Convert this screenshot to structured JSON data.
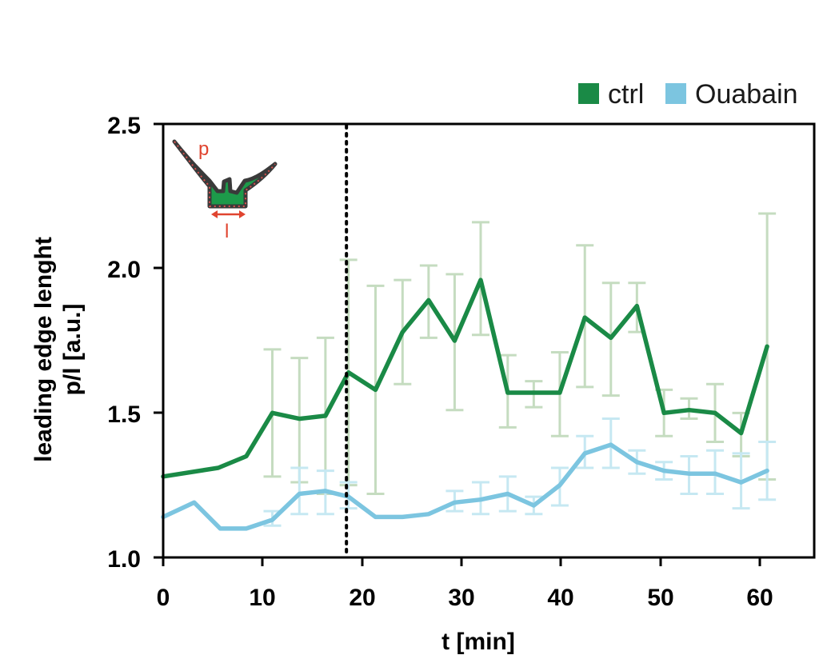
{
  "chart_data": {
    "type": "line",
    "xlabel": "t [min]",
    "ylabel": [
      "leading edge lenght",
      "p/l [a.u.]"
    ],
    "xlim": [
      0,
      65
    ],
    "ylim": [
      1.0,
      2.5
    ],
    "x_ticks": [
      "0",
      "10",
      "20",
      "30",
      "40",
      "50",
      "60"
    ],
    "y_ticks": [
      "1.0",
      "1.5",
      "2.0",
      "2.5"
    ],
    "vline_x": 18.3,
    "vline_style": "dotted",
    "grid": false,
    "legend_position": "top-right",
    "inset_labels": {
      "perimeter": "p",
      "length": "l"
    },
    "series": [
      {
        "name": "ctrl",
        "color": "#1a8a46",
        "error_color": "#c5dcc0",
        "points": [
          {
            "x": 0,
            "y": 1.28
          },
          {
            "x": 5.5,
            "y": 1.31
          },
          {
            "x": 8.3,
            "y": 1.35
          },
          {
            "x": 10.9,
            "y": 1.5,
            "lo": 1.28,
            "hi": 1.72
          },
          {
            "x": 13.6,
            "y": 1.48,
            "lo": 1.26,
            "hi": 1.69
          },
          {
            "x": 16.2,
            "y": 1.49,
            "lo": 1.22,
            "hi": 1.76
          },
          {
            "x": 18.5,
            "y": 1.64,
            "lo": 1.25,
            "hi": 2.03
          },
          {
            "x": 21.2,
            "y": 1.58,
            "lo": 1.22,
            "hi": 1.94
          },
          {
            "x": 23.9,
            "y": 1.78,
            "lo": 1.6,
            "hi": 1.96
          },
          {
            "x": 26.5,
            "y": 1.89,
            "lo": 1.76,
            "hi": 2.01
          },
          {
            "x": 29.1,
            "y": 1.75,
            "lo": 1.51,
            "hi": 1.98
          },
          {
            "x": 31.7,
            "y": 1.96,
            "lo": 1.77,
            "hi": 2.16
          },
          {
            "x": 34.4,
            "y": 1.57,
            "lo": 1.45,
            "hi": 1.7
          },
          {
            "x": 37.0,
            "y": 1.57,
            "lo": 1.52,
            "hi": 1.61
          },
          {
            "x": 39.6,
            "y": 1.57,
            "lo": 1.42,
            "hi": 1.71
          },
          {
            "x": 42.1,
            "y": 1.83,
            "lo": 1.59,
            "hi": 2.08
          },
          {
            "x": 44.7,
            "y": 1.76,
            "lo": 1.56,
            "hi": 1.95
          },
          {
            "x": 47.3,
            "y": 1.87,
            "lo": 1.78,
            "hi": 1.95
          },
          {
            "x": 50.0,
            "y": 1.5,
            "lo": 1.42,
            "hi": 1.58
          },
          {
            "x": 52.5,
            "y": 1.51,
            "lo": 1.48,
            "hi": 1.55
          },
          {
            "x": 55.1,
            "y": 1.5,
            "lo": 1.4,
            "hi": 1.6
          },
          {
            "x": 57.7,
            "y": 1.43,
            "lo": 1.35,
            "hi": 1.5
          },
          {
            "x": 60.3,
            "y": 1.73,
            "lo": 1.27,
            "hi": 2.19
          }
        ]
      },
      {
        "name": "Ouabain",
        "color": "#7cc5e0",
        "error_color": "#c6e8f2",
        "points": [
          {
            "x": 0,
            "y": 1.14
          },
          {
            "x": 3.1,
            "y": 1.19
          },
          {
            "x": 5.7,
            "y": 1.1
          },
          {
            "x": 8.3,
            "y": 1.1
          },
          {
            "x": 10.9,
            "y": 1.13,
            "lo": 1.11,
            "hi": 1.16
          },
          {
            "x": 13.6,
            "y": 1.22,
            "lo": 1.15,
            "hi": 1.31
          },
          {
            "x": 16.2,
            "y": 1.23,
            "lo": 1.15,
            "hi": 1.3
          },
          {
            "x": 18.5,
            "y": 1.21,
            "lo": 1.17,
            "hi": 1.26
          },
          {
            "x": 21.2,
            "y": 1.14
          },
          {
            "x": 23.9,
            "y": 1.14
          },
          {
            "x": 26.5,
            "y": 1.15
          },
          {
            "x": 29.1,
            "y": 1.19,
            "lo": 1.16,
            "hi": 1.23
          },
          {
            "x": 31.7,
            "y": 1.2,
            "lo": 1.15,
            "hi": 1.26
          },
          {
            "x": 34.4,
            "y": 1.22,
            "lo": 1.16,
            "hi": 1.28
          },
          {
            "x": 37.0,
            "y": 1.18,
            "lo": 1.15,
            "hi": 1.21
          },
          {
            "x": 39.6,
            "y": 1.25,
            "lo": 1.18,
            "hi": 1.31
          },
          {
            "x": 42.1,
            "y": 1.36,
            "lo": 1.31,
            "hi": 1.42
          },
          {
            "x": 44.7,
            "y": 1.39,
            "lo": 1.31,
            "hi": 1.48
          },
          {
            "x": 47.3,
            "y": 1.33,
            "lo": 1.29,
            "hi": 1.37
          },
          {
            "x": 50.0,
            "y": 1.3,
            "lo": 1.27,
            "hi": 1.33
          },
          {
            "x": 52.5,
            "y": 1.29,
            "lo": 1.22,
            "hi": 1.35
          },
          {
            "x": 55.1,
            "y": 1.29,
            "lo": 1.22,
            "hi": 1.37
          },
          {
            "x": 57.7,
            "y": 1.26,
            "lo": 1.17,
            "hi": 1.36
          },
          {
            "x": 60.3,
            "y": 1.3,
            "lo": 1.2,
            "hi": 1.4
          }
        ]
      }
    ]
  }
}
